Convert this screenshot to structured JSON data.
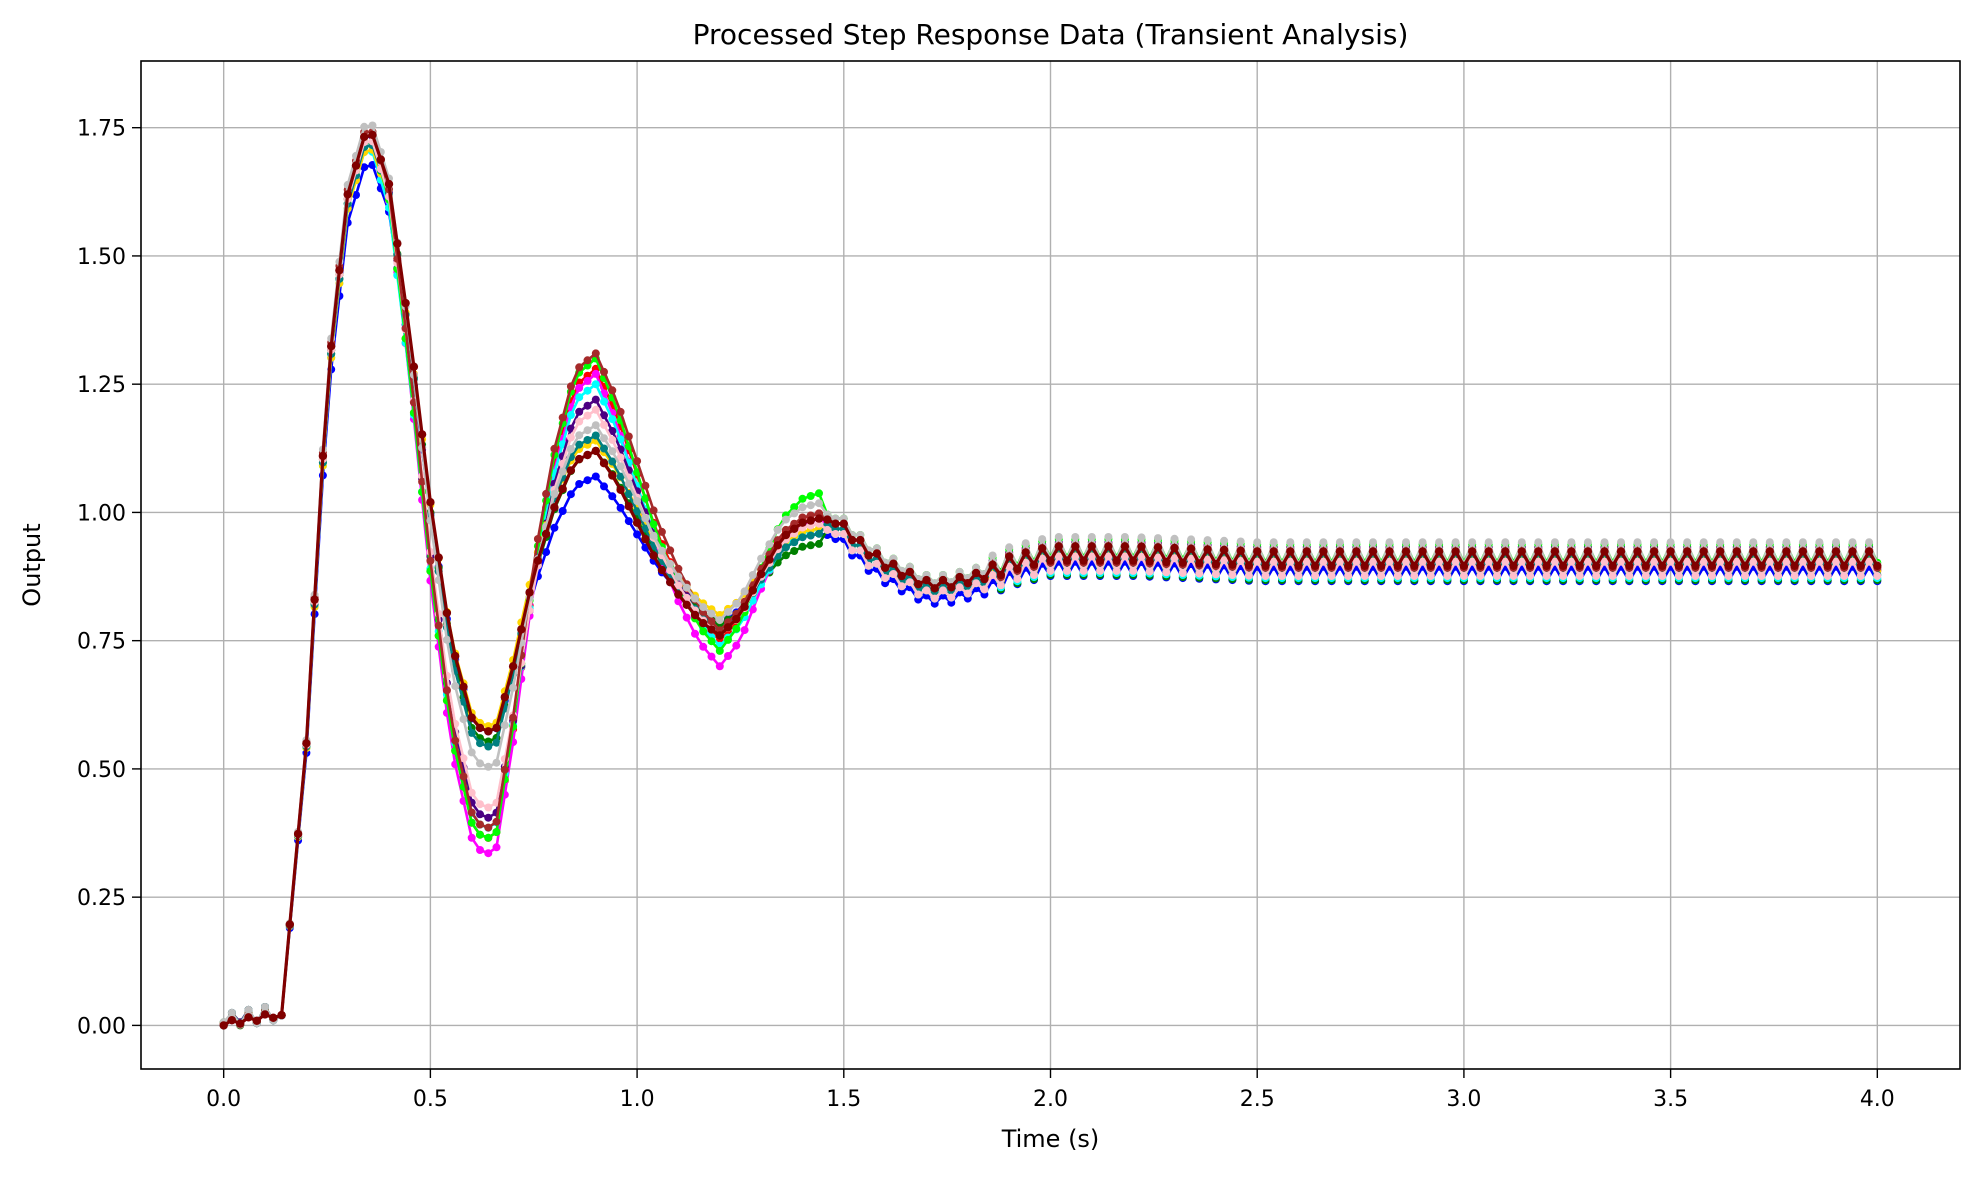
{
  "chart_data": {
    "type": "line",
    "title": "Processed Step Response Data (Transient Analysis)",
    "xlabel": "Time (s)",
    "ylabel": "Output",
    "xlim": [
      -0.2,
      4.2
    ],
    "ylim": [
      -0.085,
      1.88
    ],
    "xticks": [
      0.0,
      0.5,
      1.0,
      1.5,
      2.0,
      2.5,
      3.0,
      3.5,
      4.0
    ],
    "xtick_labels": [
      "0.0",
      "0.5",
      "1.0",
      "1.5",
      "2.0",
      "2.5",
      "3.0",
      "3.5",
      "4.0"
    ],
    "yticks": [
      0.0,
      0.25,
      0.5,
      0.75,
      1.0,
      1.25,
      1.5,
      1.75
    ],
    "ytick_labels": [
      "0.00",
      "0.25",
      "0.50",
      "0.75",
      "1.00",
      "1.25",
      "1.50",
      "1.75"
    ],
    "grid": true,
    "legend": "none",
    "colors": {
      "grid": "#b0b0b0",
      "axes": "#000000",
      "highlight": "#800000"
    },
    "key_points": {
      "t": [
        0.0,
        0.14,
        0.2,
        0.25,
        0.3,
        0.35,
        0.4,
        0.45,
        0.5,
        0.55,
        0.6,
        0.63,
        0.66,
        0.7,
        0.75,
        0.8,
        0.85,
        0.9,
        0.95,
        1.0,
        1.05,
        1.1,
        1.15,
        1.2,
        1.25,
        1.3,
        1.35,
        1.4,
        1.45,
        1.5,
        1.55,
        1.6,
        1.65,
        1.7,
        1.75,
        1.8,
        1.85,
        1.9,
        2.0,
        2.2,
        2.5,
        3.0,
        3.5,
        4.0
      ],
      "y": [
        0.0,
        0.02,
        0.55,
        1.25,
        1.62,
        1.76,
        1.64,
        1.35,
        1.02,
        0.75,
        0.6,
        0.57,
        0.58,
        0.7,
        0.88,
        1.01,
        1.1,
        1.12,
        1.06,
        0.98,
        0.9,
        0.84,
        0.79,
        0.76,
        0.8,
        0.88,
        0.95,
        0.98,
        0.99,
        0.97,
        0.93,
        0.9,
        0.88,
        0.86,
        0.86,
        0.87,
        0.88,
        0.9,
        0.92,
        0.92,
        0.91,
        0.91,
        0.91,
        0.91
      ]
    },
    "series": [
      {
        "color": "#0000ff",
        "peak": 1.7,
        "trough1": 0.57,
        "peak2": 1.07,
        "trough2": 0.78,
        "peak3": 0.96,
        "final": 0.88
      },
      {
        "color": "#ff0000",
        "peak": 1.75,
        "trough1": 0.36,
        "peak2": 1.28,
        "trough2": 0.75,
        "peak3": 1.0,
        "final": 0.91
      },
      {
        "color": "#008000",
        "peak": 1.74,
        "trough1": 0.55,
        "peak2": 1.12,
        "trough2": 0.78,
        "peak3": 0.94,
        "final": 0.89
      },
      {
        "color": "#ff00ff",
        "peak": 1.75,
        "trough1": 0.33,
        "peak2": 1.27,
        "trough2": 0.7,
        "peak3": 0.99,
        "final": 0.9
      },
      {
        "color": "#00ffff",
        "peak": 1.73,
        "trough1": 0.38,
        "peak2": 1.25,
        "trough2": 0.74,
        "peak3": 0.97,
        "final": 0.89
      },
      {
        "color": "#4b0082",
        "peak": 1.76,
        "trough1": 0.4,
        "peak2": 1.22,
        "trough2": 0.76,
        "peak3": 0.99,
        "final": 0.91
      },
      {
        "color": "#ffd700",
        "peak": 1.73,
        "trough1": 0.58,
        "peak2": 1.14,
        "trough2": 0.8,
        "peak3": 0.97,
        "final": 0.9
      },
      {
        "color": "#00ff00",
        "peak": 1.75,
        "trough1": 0.36,
        "peak2": 1.3,
        "trough2": 0.73,
        "peak3": 1.04,
        "final": 0.92
      },
      {
        "color": "#008080",
        "peak": 1.74,
        "trough1": 0.54,
        "peak2": 1.15,
        "trough2": 0.77,
        "peak3": 0.96,
        "final": 0.9
      },
      {
        "color": "#ffc0cb",
        "peak": 1.75,
        "trough1": 0.42,
        "peak2": 1.2,
        "trough2": 0.76,
        "peak3": 0.98,
        "final": 0.89
      },
      {
        "color": "#a52a2a",
        "peak": 1.77,
        "trough1": 0.38,
        "peak2": 1.31,
        "trough2": 0.77,
        "peak3": 1.0,
        "final": 0.91
      },
      {
        "color": "#c0c0c0",
        "peak": 1.78,
        "trough1": 0.5,
        "peak2": 1.17,
        "trough2": 0.79,
        "peak3": 1.02,
        "final": 0.92
      },
      {
        "color": "#800000",
        "peak": 1.76,
        "trough1": 0.57,
        "peak2": 1.12,
        "trough2": 0.76,
        "peak3": 0.99,
        "final": 0.91
      }
    ]
  }
}
